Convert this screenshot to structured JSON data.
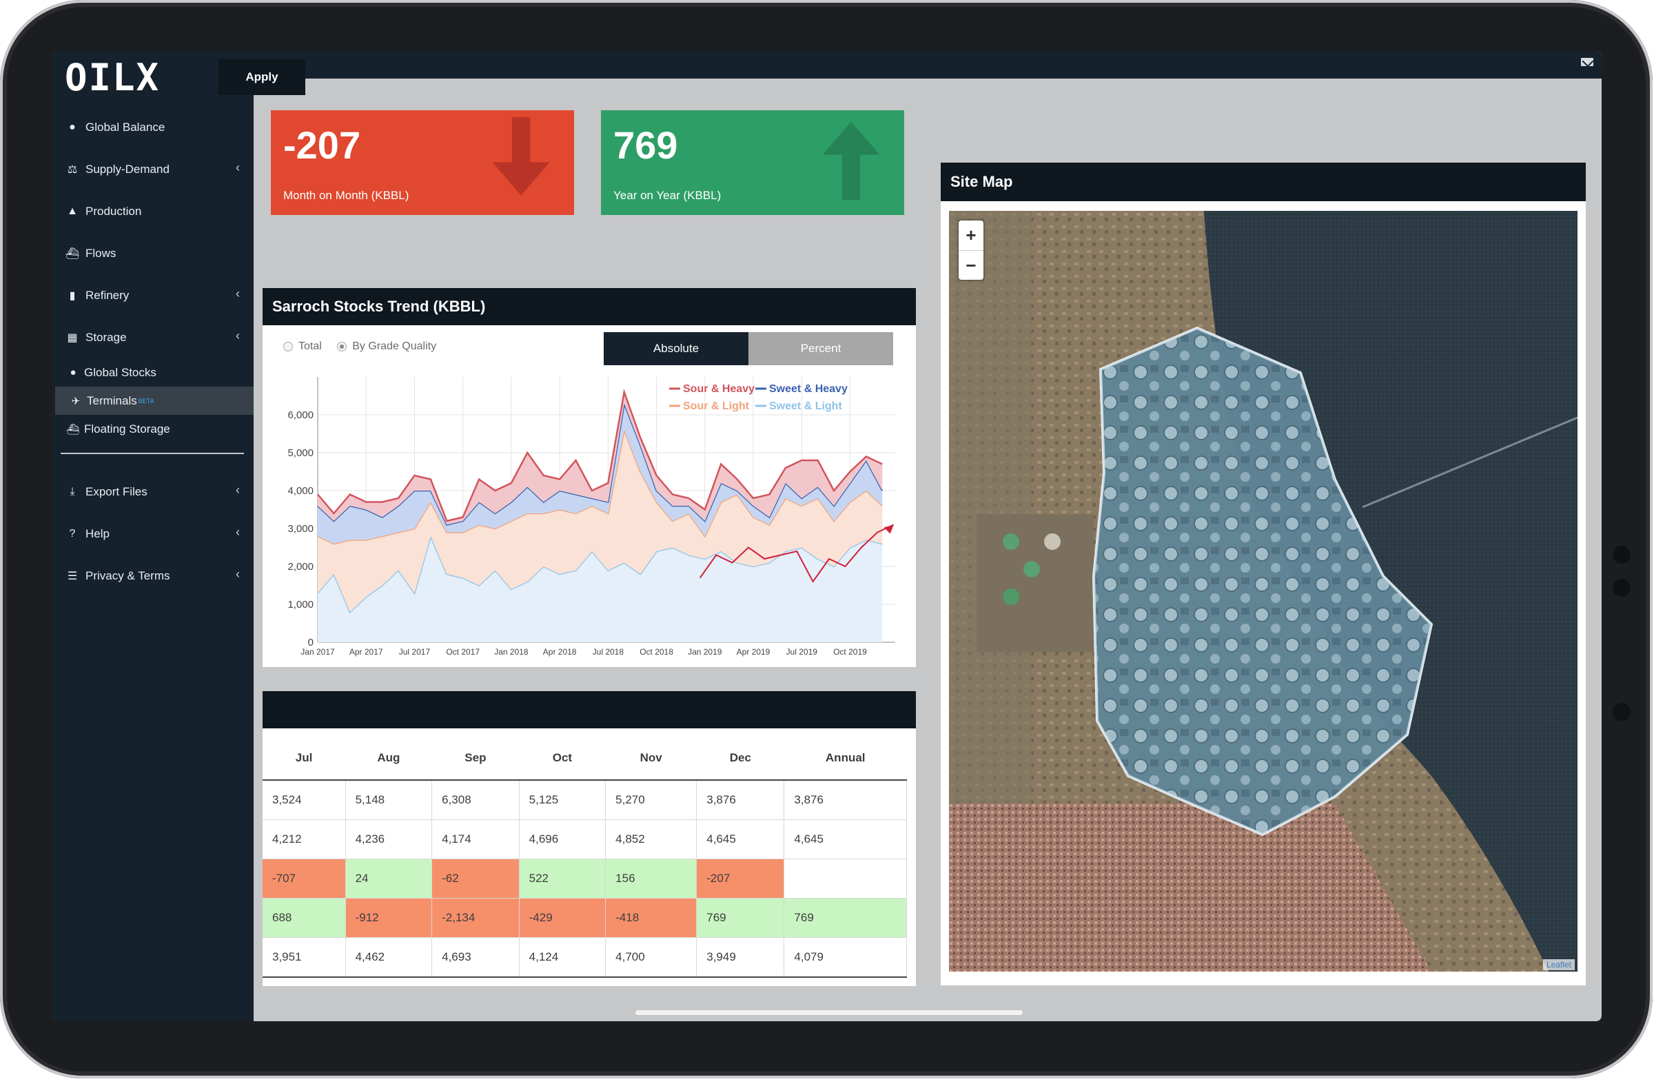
{
  "app": {
    "logo": "OILX"
  },
  "sidebar": {
    "items": [
      {
        "label": "Global Balance",
        "icon": "globe-icon",
        "chevron": false
      },
      {
        "label": "Supply-Demand",
        "icon": "scale-icon",
        "chevron": true
      },
      {
        "label": "Production",
        "icon": "droplet-icon",
        "chevron": false
      },
      {
        "label": "Flows",
        "icon": "ship-icon",
        "chevron": false
      },
      {
        "label": "Refinery",
        "icon": "bar-chart-icon",
        "chevron": true
      },
      {
        "label": "Storage",
        "icon": "storage-icon",
        "chevron": true
      }
    ],
    "subitems": [
      {
        "label": "Global Stocks",
        "icon": "globe-icon",
        "active": false,
        "badge": ""
      },
      {
        "label": "Terminals",
        "icon": "terminal-icon",
        "active": true,
        "badge": "BETA"
      },
      {
        "label": "Floating Storage",
        "icon": "ship-icon",
        "active": false,
        "badge": ""
      }
    ],
    "bottom": [
      {
        "label": "Export Files",
        "icon": "download-icon",
        "chevron": true
      },
      {
        "label": "Help",
        "icon": "question-icon",
        "chevron": true
      },
      {
        "label": "Privacy & Terms",
        "icon": "list-icon",
        "chevron": true
      }
    ]
  },
  "toolbar": {
    "apply_label": "Apply"
  },
  "kpis": [
    {
      "value": "-207",
      "label": "Month on Month (KBBL)",
      "color": "#e0482f",
      "direction": "down",
      "arrow_color": "#b93426"
    },
    {
      "value": "769",
      "label": "Year on Year (KBBL)",
      "color": "#2e9e67",
      "direction": "up",
      "arrow_color": "#258356"
    }
  ],
  "trend": {
    "title": "Sarroch Stocks Trend (KBBL)",
    "radio_total": "Total",
    "radio_grade": "By Grade Quality",
    "selected": "By Grade Quality",
    "seg_absolute": "Absolute",
    "seg_percent": "Percent",
    "seg_selected": "Absolute"
  },
  "chart_data": {
    "type": "area",
    "stacked": true,
    "x": [
      "Jan 2017",
      "Feb 2017",
      "Mar 2017",
      "Apr 2017",
      "May 2017",
      "Jun 2017",
      "Jul 2017",
      "Aug 2017",
      "Sep 2017",
      "Oct 2017",
      "Nov 2017",
      "Dec 2017",
      "Jan 2018",
      "Feb 2018",
      "Mar 2018",
      "Apr 2018",
      "May 2018",
      "Jun 2018",
      "Jul 2018",
      "Aug 2018",
      "Sep 2018",
      "Oct 2018",
      "Nov 2018",
      "Dec 2018",
      "Jan 2019",
      "Feb 2019",
      "Mar 2019",
      "Apr 2019",
      "May 2019",
      "Jun 2019",
      "Jul 2019",
      "Aug 2019",
      "Sep 2019",
      "Oct 2019",
      "Nov 2019",
      "Dec 2019"
    ],
    "xticks": [
      "Jan 2017",
      "Apr 2017",
      "Jul 2017",
      "Oct 2017",
      "Jan 2018",
      "Apr 2018",
      "Jul 2018",
      "Oct 2018",
      "Jan 2019",
      "Apr 2019",
      "Jul 2019",
      "Oct 2019"
    ],
    "ylim": [
      0,
      7000
    ],
    "yticks": [
      "0",
      "1,000",
      "2,000",
      "3,000",
      "4,000",
      "5,000",
      "6,000"
    ],
    "grid": true,
    "legend_position": "top-right",
    "series": [
      {
        "name": "Sweet & Light",
        "color": "#8fc3e8",
        "fill": "#e4eff9",
        "values": [
          1300,
          1800,
          800,
          1200,
          1500,
          1900,
          1300,
          2800,
          1800,
          1700,
          1500,
          1900,
          1400,
          1600,
          2000,
          1800,
          1900,
          2400,
          1900,
          2100,
          1800,
          2400,
          2500,
          2300,
          2200,
          2400,
          2100,
          2000,
          2100,
          2400,
          2500,
          2200,
          2000,
          2500,
          2700,
          2600
        ]
      },
      {
        "name": "Sour & Light",
        "color": "#f2a37a",
        "fill": "#fbe2d6",
        "values": [
          1500,
          800,
          1900,
          1500,
          1300,
          1000,
          1700,
          900,
          1100,
          1200,
          1600,
          1100,
          1800,
          1800,
          1400,
          1700,
          1500,
          1200,
          1500,
          3500,
          2700,
          1300,
          700,
          1100,
          600,
          1300,
          1800,
          1300,
          1000,
          1400,
          1100,
          1600,
          1200,
          1200,
          1300,
          1000
        ]
      },
      {
        "name": "Sweet & Heavy",
        "color": "#3b62b0",
        "fill": "#c6d6f2",
        "values": [
          800,
          600,
          900,
          800,
          500,
          700,
          1000,
          300,
          200,
          300,
          600,
          400,
          500,
          700,
          300,
          500,
          500,
          200,
          300,
          700,
          700,
          300,
          400,
          200,
          400,
          500,
          100,
          300,
          200,
          400,
          200,
          300,
          400,
          500,
          800,
          400
        ]
      },
      {
        "name": "Sour & Heavy",
        "color": "#d2545c",
        "fill": "#f2c7cb",
        "values": [
          300,
          200,
          300,
          200,
          400,
          200,
          400,
          300,
          100,
          100,
          600,
          600,
          500,
          900,
          700,
          300,
          900,
          200,
          500,
          300,
          200,
          400,
          300,
          200,
          300,
          500,
          300,
          200,
          600,
          400,
          1000,
          700,
          400,
          300,
          100,
          700
        ]
      }
    ],
    "annotation": {
      "type": "arrow-line",
      "color": "#d0203a",
      "values": [
        [
          24,
          1700
        ],
        [
          25,
          2300
        ],
        [
          26,
          2100
        ],
        [
          27,
          2500
        ],
        [
          28,
          2200
        ],
        [
          29,
          2300
        ],
        [
          30,
          2400
        ],
        [
          31,
          1600
        ],
        [
          32,
          2200
        ],
        [
          33,
          2000
        ],
        [
          34,
          2500
        ],
        [
          35,
          2900
        ],
        [
          36,
          3100
        ]
      ]
    }
  },
  "table": {
    "columns": [
      "Jul",
      "Aug",
      "Sep",
      "Oct",
      "Nov",
      "Dec",
      "Annual"
    ],
    "rows": [
      {
        "cells": [
          "3,524",
          "5,148",
          "6,308",
          "5,125",
          "5,270",
          "3,876",
          "3,876"
        ],
        "status": [
          "",
          "",
          "",
          "",
          "",
          "",
          ""
        ]
      },
      {
        "cells": [
          "4,212",
          "4,236",
          "4,174",
          "4,696",
          "4,852",
          "4,645",
          "4,645"
        ],
        "status": [
          "",
          "",
          "",
          "",
          "",
          "",
          ""
        ]
      },
      {
        "cells": [
          "-707",
          "24",
          "-62",
          "522",
          "156",
          "-207",
          ""
        ],
        "status": [
          "neg",
          "pos",
          "neg",
          "pos",
          "pos",
          "neg",
          ""
        ]
      },
      {
        "cells": [
          "688",
          "-912",
          "-2,134",
          "-429",
          "-418",
          "769",
          "769"
        ],
        "status": [
          "pos",
          "neg",
          "neg",
          "neg",
          "neg",
          "pos",
          "pos"
        ]
      },
      {
        "cells": [
          "3,951",
          "4,462",
          "4,693",
          "4,124",
          "4,700",
          "3,949",
          "4,079"
        ],
        "status": [
          "",
          "",
          "",
          "",
          "",
          "",
          ""
        ]
      }
    ]
  },
  "sitemap": {
    "title": "Site Map",
    "zoom_in": "+",
    "zoom_out": "−",
    "attribution": "Leaflet"
  }
}
